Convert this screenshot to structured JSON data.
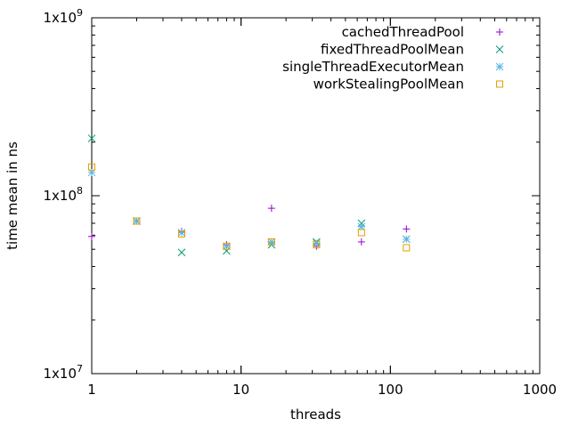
{
  "chart_data": {
    "type": "scatter",
    "xlabel": "threads",
    "ylabel": "time mean in ns",
    "x_scale": "log",
    "y_scale": "log",
    "xlim": [
      1,
      1000
    ],
    "ylim": [
      10000000,
      1000000000
    ],
    "grid": false,
    "legend_position": "top-right",
    "x_ticks": [
      {
        "value": 1,
        "label": "1"
      },
      {
        "value": 10,
        "label": "10"
      },
      {
        "value": 100,
        "label": "100"
      },
      {
        "value": 1000,
        "label": "1000"
      }
    ],
    "y_ticks": [
      {
        "value": 10000000,
        "base": "1x10",
        "exp": "7"
      },
      {
        "value": 100000000,
        "base": "1x10",
        "exp": "8"
      },
      {
        "value": 1000000000,
        "base": "1x10",
        "exp": "9"
      }
    ],
    "series": [
      {
        "name": "cachedThreadPool",
        "color": "#9400d3",
        "marker": "plus",
        "points": [
          [
            1,
            59000000
          ],
          [
            2,
            72000000
          ],
          [
            4,
            63000000
          ],
          [
            8,
            53000000
          ],
          [
            16,
            85000000
          ],
          [
            32,
            52000000
          ],
          [
            64,
            55000000
          ],
          [
            128,
            65000000
          ]
        ]
      },
      {
        "name": "fixedThreadPoolMean",
        "color": "#009e73",
        "marker": "cross",
        "points": [
          [
            1,
            210000000
          ],
          [
            2,
            72000000
          ],
          [
            4,
            48000000
          ],
          [
            8,
            49000000
          ],
          [
            16,
            53000000
          ],
          [
            32,
            55000000
          ],
          [
            64,
            70000000
          ],
          [
            128,
            57000000
          ]
        ]
      },
      {
        "name": "singleThreadExecutorMean",
        "color": "#56b4e9",
        "marker": "star",
        "points": [
          [
            1,
            135000000
          ],
          [
            2,
            72000000
          ],
          [
            4,
            62000000
          ],
          [
            8,
            52000000
          ],
          [
            16,
            55000000
          ],
          [
            32,
            54000000
          ],
          [
            64,
            67000000
          ],
          [
            128,
            57000000
          ]
        ]
      },
      {
        "name": "workStealingPoolMean",
        "color": "#e69f00",
        "marker": "square",
        "points": [
          [
            1,
            145000000
          ],
          [
            2,
            72000000
          ],
          [
            4,
            61000000
          ],
          [
            8,
            52000000
          ],
          [
            16,
            55000000
          ],
          [
            32,
            53000000
          ],
          [
            64,
            62000000
          ],
          [
            128,
            51000000
          ]
        ]
      }
    ]
  }
}
